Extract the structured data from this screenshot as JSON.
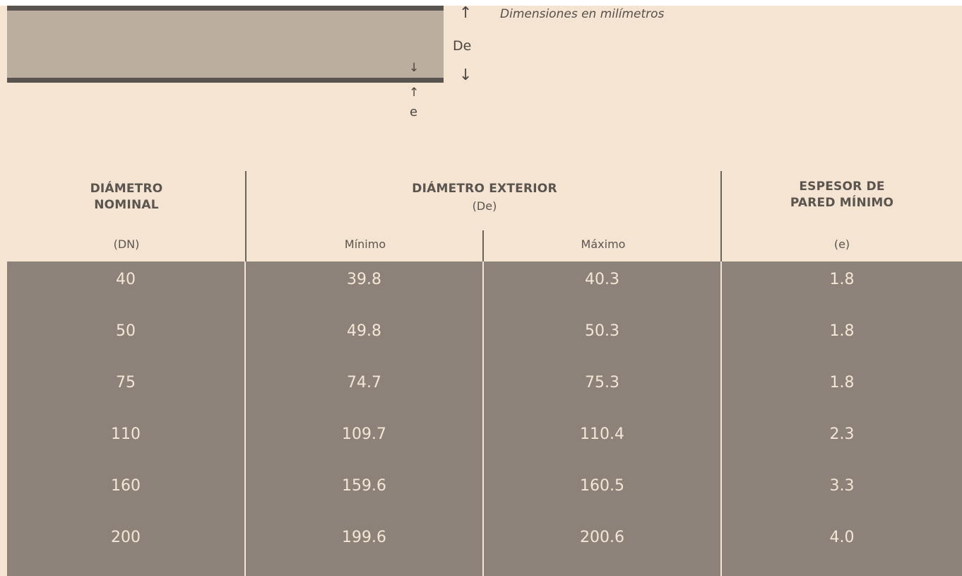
{
  "diagram": {
    "de_label": "De",
    "e_label": "e",
    "arrow_up": "↑",
    "arrow_down": "↓",
    "units_note": "Dimensiones en milímetros"
  },
  "table": {
    "headers": {
      "nominal": [
        "DIÁMETRO",
        "NOMINAL"
      ],
      "nominal_symbol": "(DN)",
      "exterior": "DIÁMETRO EXTERIOR",
      "exterior_symbol": "(De)",
      "minimo": "Mínimo",
      "maximo": "Máximo",
      "espesor": [
        "ESPESOR DE",
        "PARED MÍNIMO"
      ],
      "espesor_symbol": "(e)"
    },
    "rows": [
      [
        "40",
        "39.8",
        "40.3",
        "1.8"
      ],
      [
        "50",
        "49.8",
        "50.3",
        "1.8"
      ],
      [
        "75",
        "74.7",
        "75.3",
        "1.8"
      ],
      [
        "110",
        "109.7",
        "110.4",
        "2.3"
      ],
      [
        "160",
        "159.6",
        "160.5",
        "3.3"
      ],
      [
        "200",
        "199.6",
        "200.6",
        "4.0"
      ]
    ]
  },
  "colors": {
    "background": "#f4e4d1",
    "pipe_fill": "#bcae9e",
    "pipe_wall": "#5a5450",
    "table_body": "#8c8279",
    "body_text": "#f4e6d5",
    "header_text": "#5b5550"
  }
}
